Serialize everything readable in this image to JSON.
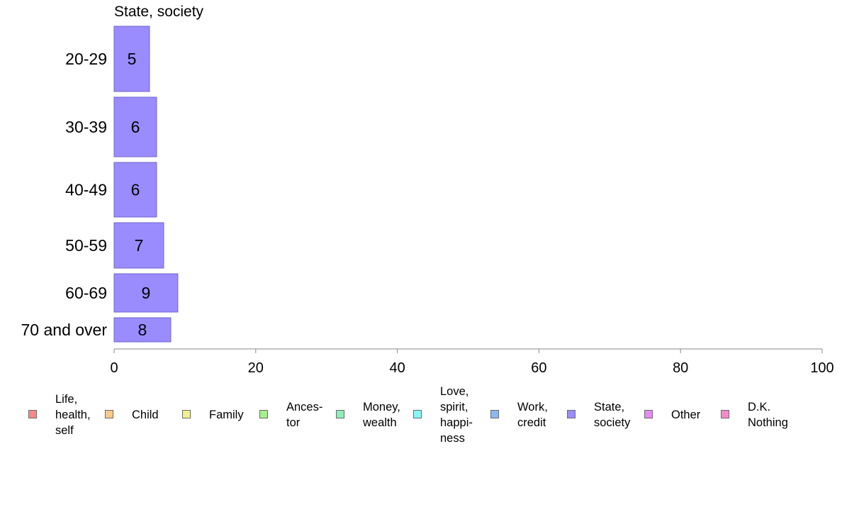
{
  "chart_data": {
    "type": "bar",
    "orientation": "horizontal",
    "title": "State, society",
    "categories": [
      "20-29",
      "30-39",
      "40-49",
      "50-59",
      "60-69",
      "70 and over"
    ],
    "values": [
      5,
      6,
      6,
      7,
      9,
      8
    ],
    "value_labels": [
      "5",
      "6",
      "6",
      "7",
      "9",
      "8"
    ],
    "xlim": [
      0,
      100
    ],
    "x_ticks": [
      0,
      20,
      40,
      60,
      80,
      100
    ],
    "x_tick_labels": [
      "0",
      "20",
      "40",
      "60",
      "80",
      "100"
    ],
    "bar_color": "#9a8cff",
    "bar_edge_color": "#6f64c8",
    "grid": false,
    "legend_position": "bottom",
    "legend": [
      {
        "label": "Life,\nhealth,\nself",
        "color": "#f58a8a"
      },
      {
        "label": "Child",
        "color": "#fbc98a"
      },
      {
        "label": "Family",
        "color": "#eef08a"
      },
      {
        "label": "Ances-\ntor",
        "color": "#a4f08a"
      },
      {
        "label": "Money,\nwealth",
        "color": "#8af0b8"
      },
      {
        "label": "Love,\nspirit,\nhappi-\nness",
        "color": "#8af5f5"
      },
      {
        "label": "Work,\ncredit",
        "color": "#8ab8f5"
      },
      {
        "label": "State,\nsociety",
        "color": "#9a8cff"
      },
      {
        "label": "Other",
        "color": "#e88af5"
      },
      {
        "label": "D.K.\nNothing",
        "color": "#f58ac8"
      }
    ]
  }
}
